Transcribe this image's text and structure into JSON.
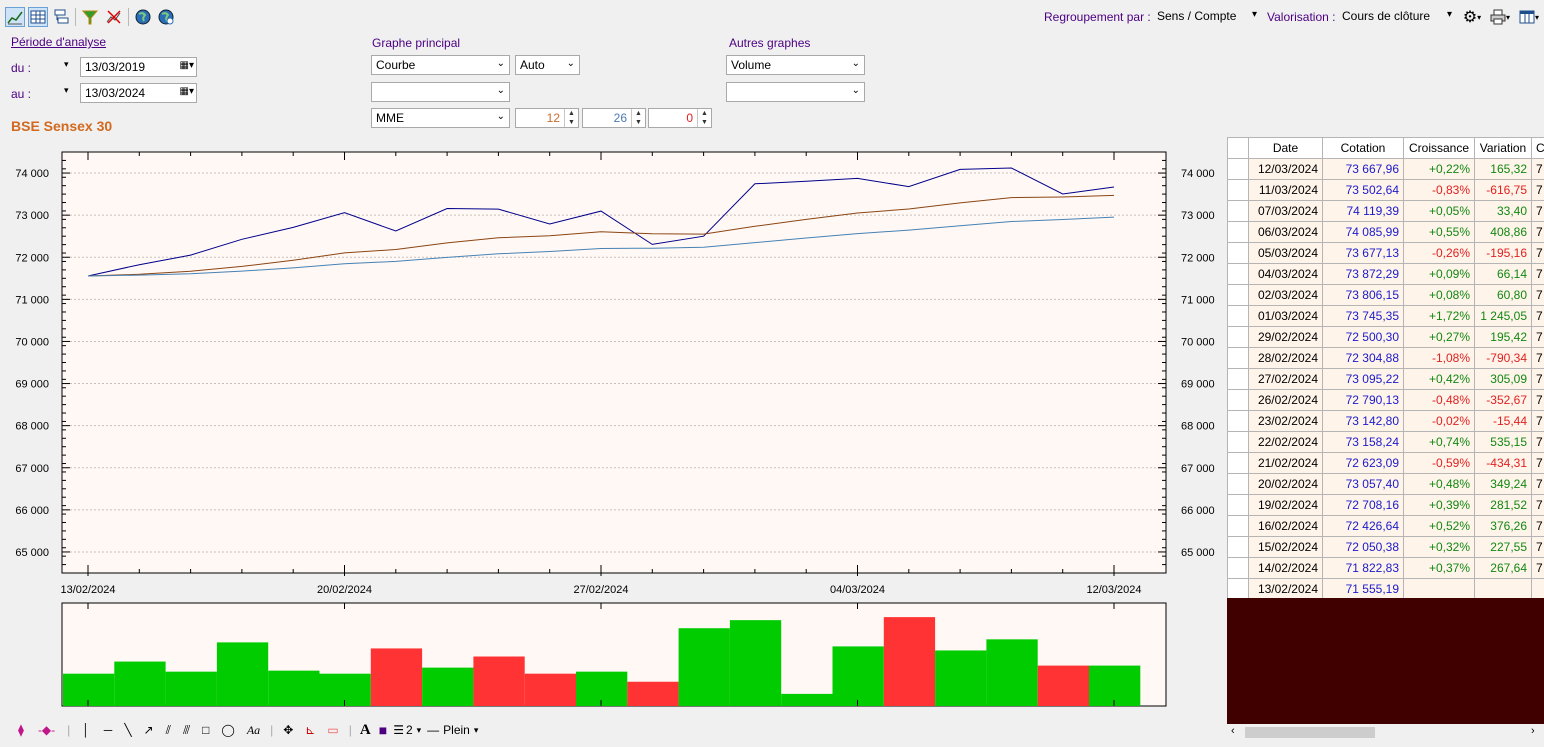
{
  "toolbar": {
    "icons": [
      "chart-icon",
      "table-icon",
      "tree-icon",
      "filter-icon",
      "no-chart-icon",
      "globe-icon",
      "globe-refresh-icon"
    ],
    "group_label": "Regroupement par :",
    "group_value": "Sens / Compte",
    "valuation_label": "Valorisation :",
    "valuation_value": "Cours de clôture"
  },
  "period": {
    "title": "Période d'analyse",
    "from_label": "du :",
    "from_value": "13/03/2019",
    "to_label": "au :",
    "to_value": "13/03/2024"
  },
  "main_graph": {
    "title": "Graphe principal",
    "type": "Courbe",
    "scale": "Auto",
    "second": "",
    "indicator": "MME",
    "p1": "12",
    "p2": "26",
    "p3": "0"
  },
  "other_graphs": {
    "title": "Autres graphes",
    "first": "Volume",
    "second": ""
  },
  "instrument": "BSE Sensex 30",
  "table": {
    "headers": [
      "Date",
      "Cotation",
      "Croissance",
      "Variation",
      "C"
    ],
    "rows": [
      {
        "date": "12/03/2024",
        "cotation": "73 667,96",
        "croissance": "+0,22%",
        "variation": "165,32",
        "c": "7"
      },
      {
        "date": "11/03/2024",
        "cotation": "73 502,64",
        "croissance": "-0,83%",
        "variation": "-616,75",
        "c": "7"
      },
      {
        "date": "07/03/2024",
        "cotation": "74 119,39",
        "croissance": "+0,05%",
        "variation": "33,40",
        "c": "7"
      },
      {
        "date": "06/03/2024",
        "cotation": "74 085,99",
        "croissance": "+0,55%",
        "variation": "408,86",
        "c": "7"
      },
      {
        "date": "05/03/2024",
        "cotation": "73 677,13",
        "croissance": "-0,26%",
        "variation": "-195,16",
        "c": "7"
      },
      {
        "date": "04/03/2024",
        "cotation": "73 872,29",
        "croissance": "+0,09%",
        "variation": "66,14",
        "c": "7"
      },
      {
        "date": "02/03/2024",
        "cotation": "73 806,15",
        "croissance": "+0,08%",
        "variation": "60,80",
        "c": "7"
      },
      {
        "date": "01/03/2024",
        "cotation": "73 745,35",
        "croissance": "+1,72%",
        "variation": "1 245,05",
        "c": "7"
      },
      {
        "date": "29/02/2024",
        "cotation": "72 500,30",
        "croissance": "+0,27%",
        "variation": "195,42",
        "c": "7"
      },
      {
        "date": "28/02/2024",
        "cotation": "72 304,88",
        "croissance": "-1,08%",
        "variation": "-790,34",
        "c": "7"
      },
      {
        "date": "27/02/2024",
        "cotation": "73 095,22",
        "croissance": "+0,42%",
        "variation": "305,09",
        "c": "7"
      },
      {
        "date": "26/02/2024",
        "cotation": "72 790,13",
        "croissance": "-0,48%",
        "variation": "-352,67",
        "c": "7"
      },
      {
        "date": "23/02/2024",
        "cotation": "73 142,80",
        "croissance": "-0,02%",
        "variation": "-15,44",
        "c": "7"
      },
      {
        "date": "22/02/2024",
        "cotation": "73 158,24",
        "croissance": "+0,74%",
        "variation": "535,15",
        "c": "7"
      },
      {
        "date": "21/02/2024",
        "cotation": "72 623,09",
        "croissance": "-0,59%",
        "variation": "-434,31",
        "c": "7"
      },
      {
        "date": "20/02/2024",
        "cotation": "73 057,40",
        "croissance": "+0,48%",
        "variation": "349,24",
        "c": "7"
      },
      {
        "date": "19/02/2024",
        "cotation": "72 708,16",
        "croissance": "+0,39%",
        "variation": "281,52",
        "c": "7"
      },
      {
        "date": "16/02/2024",
        "cotation": "72 426,64",
        "croissance": "+0,52%",
        "variation": "376,26",
        "c": "7"
      },
      {
        "date": "15/02/2024",
        "cotation": "72 050,38",
        "croissance": "+0,32%",
        "variation": "227,55",
        "c": "7"
      },
      {
        "date": "14/02/2024",
        "cotation": "71 822,83",
        "croissance": "+0,37%",
        "variation": "267,64",
        "c": "7"
      },
      {
        "date": "13/02/2024",
        "cotation": "71 555,19",
        "croissance": "",
        "variation": "",
        "c": ""
      }
    ]
  },
  "bottom_toolbar": {
    "line_width": "2",
    "line_style": "Plein"
  },
  "colors": {
    "price_line": "#00008b",
    "mme_short": "#8b4513",
    "mme_long": "#4682b4",
    "volume_up": "#00cc00",
    "volume_down": "#ff3333",
    "plot_bg": "#fff8f5",
    "table_empty_bg": "#400000"
  },
  "chart_data": {
    "type": "line",
    "title": "BSE Sensex 30",
    "x": [
      "13/02/2024",
      "14/02/2024",
      "15/02/2024",
      "16/02/2024",
      "19/02/2024",
      "20/02/2024",
      "21/02/2024",
      "22/02/2024",
      "23/02/2024",
      "26/02/2024",
      "27/02/2024",
      "28/02/2024",
      "29/02/2024",
      "01/03/2024",
      "02/03/2024",
      "04/03/2024",
      "05/03/2024",
      "06/03/2024",
      "07/03/2024",
      "11/03/2024",
      "12/03/2024"
    ],
    "x_tick_labels": [
      "13/02/2024",
      "20/02/2024",
      "27/02/2024",
      "04/03/2024",
      "12/03/2024"
    ],
    "x_tick_index": [
      0,
      5,
      10,
      15,
      20
    ],
    "y_ticks": [
      "65 000",
      "66 000",
      "67 000",
      "68 000",
      "69 000",
      "70 000",
      "71 000",
      "72 000",
      "73 000",
      "74 000"
    ],
    "ylim": [
      64500,
      74500
    ],
    "series": [
      {
        "values": [
          71555.19,
          71822.83,
          72050.38,
          72426.64,
          72708.16,
          73057.4,
          72623.09,
          73158.24,
          73142.8,
          72790.13,
          73095.22,
          72304.88,
          72500.3,
          73745.35,
          73806.15,
          73872.29,
          73677.13,
          74085.99,
          74119.39,
          73502.64,
          73667.96
        ]
      },
      {
        "values": [
          71555,
          71596,
          71666,
          71783,
          71927,
          72103,
          72183,
          72341,
          72463,
          72513,
          72604,
          72558,
          72550,
          72734,
          72899,
          73050,
          73146,
          73290,
          73418,
          73431,
          73469
        ]
      },
      {
        "values": [
          71555,
          71575,
          71610,
          71670,
          71747,
          71844,
          71902,
          71997,
          72083,
          72136,
          72208,
          72215,
          72236,
          72349,
          72457,
          72562,
          72644,
          72749,
          72848,
          72896,
          72953
        ]
      }
    ],
    "volume": {
      "type": "bar",
      "direction": [
        "up",
        "up",
        "up",
        "up",
        "up",
        "up",
        "down",
        "up",
        "down",
        "down",
        "up",
        "down",
        "up",
        "up",
        "up",
        "up",
        "down",
        "up",
        "up",
        "down",
        "up"
      ],
      "values": [
        32,
        44,
        34,
        63,
        35,
        32,
        57,
        38,
        49,
        32,
        34,
        24,
        77,
        85,
        12,
        59,
        88,
        55,
        66,
        40,
        40
      ]
    }
  }
}
